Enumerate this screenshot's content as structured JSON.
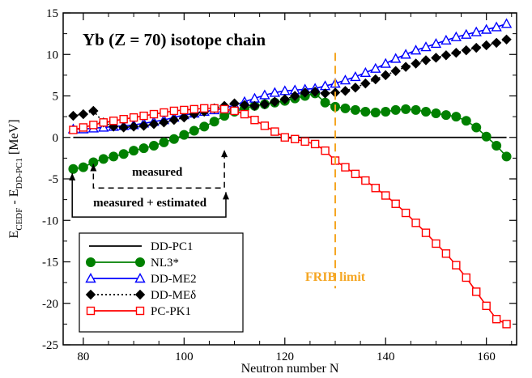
{
  "chart_data": {
    "type": "line",
    "title": "Yb (Z = 70) isotope chain",
    "xlabel": "Neutron number N",
    "ylabel": "E_CEDF - E_DD-PC1 [MeV]",
    "ylabel_parts": {
      "e1": "E",
      "s1": "CEDF",
      "sep": " - ",
      "e2": "E",
      "s2": "DD-PC1",
      "unit": " [MeV]"
    },
    "xlim": [
      76,
      166
    ],
    "ylim": [
      -25,
      15
    ],
    "xticks": [
      80,
      100,
      120,
      140,
      160
    ],
    "yticks": [
      -25,
      -20,
      -15,
      -10,
      -5,
      0,
      5,
      10,
      15
    ],
    "grid": false,
    "legend_position": "bottom-left",
    "annotations": {
      "frib": "FRIB limit",
      "measured": "measured",
      "measured_estimated": "measured + estimated"
    },
    "series": [
      {
        "name": "DD-PC1",
        "key": "ddpc1",
        "color": "#000000",
        "marker": "none",
        "dash": "solid",
        "x": [
          78,
          164
        ],
        "y": [
          0,
          0
        ]
      },
      {
        "name": "NL3*",
        "key": "nl3",
        "color": "#008000",
        "marker": "filled-circle",
        "dash": "solid",
        "x": [
          78,
          80,
          82,
          84,
          86,
          88,
          90,
          92,
          94,
          96,
          98,
          100,
          102,
          104,
          106,
          108,
          110,
          112,
          114,
          116,
          118,
          120,
          122,
          124,
          126,
          128,
          130,
          132,
          134,
          136,
          138,
          140,
          142,
          144,
          146,
          148,
          150,
          152,
          154,
          156,
          158,
          160,
          162,
          164
        ],
        "y": [
          -3.8,
          -3.6,
          -3.0,
          -2.6,
          -2.3,
          -2.0,
          -1.6,
          -1.3,
          -1.0,
          -0.6,
          -0.2,
          0.3,
          0.8,
          1.3,
          1.9,
          2.6,
          3.1,
          3.5,
          3.8,
          4.0,
          4.2,
          4.4,
          4.7,
          5.0,
          5.3,
          4.2,
          3.7,
          3.5,
          3.3,
          3.1,
          3.0,
          3.1,
          3.3,
          3.4,
          3.3,
          3.1,
          2.9,
          2.7,
          2.5,
          2.0,
          1.2,
          0.1,
          -1.0,
          -2.3
        ]
      },
      {
        "name": "DD-ME2",
        "key": "ddme2",
        "color": "#0000ff",
        "marker": "open-triangle",
        "dash": "solid",
        "x": [
          78,
          80,
          82,
          84,
          86,
          88,
          90,
          92,
          94,
          96,
          98,
          100,
          102,
          104,
          106,
          108,
          110,
          112,
          114,
          116,
          118,
          120,
          122,
          124,
          126,
          128,
          130,
          132,
          134,
          136,
          138,
          140,
          142,
          144,
          146,
          148,
          150,
          152,
          154,
          156,
          158,
          160,
          162,
          164
        ],
        "y": [
          1.0,
          1.0,
          1.1,
          1.2,
          1.3,
          1.4,
          1.5,
          1.7,
          1.9,
          2.1,
          2.4,
          2.7,
          2.9,
          3.1,
          3.3,
          3.5,
          3.9,
          4.3,
          4.7,
          5.1,
          5.4,
          5.6,
          5.7,
          5.8,
          5.9,
          6.2,
          6.5,
          6.9,
          7.3,
          7.8,
          8.3,
          8.9,
          9.5,
          10.0,
          10.5,
          10.9,
          11.3,
          11.7,
          12.1,
          12.4,
          12.7,
          13.0,
          13.3,
          13.7
        ]
      },
      {
        "name": "DD-MEδ",
        "key": "ddmed",
        "color": "#000000",
        "marker": "filled-diamond",
        "dash": "dotted",
        "x": [
          78,
          80,
          82,
          84,
          86,
          88,
          90,
          92,
          94,
          96,
          98,
          100,
          102,
          104,
          106,
          108,
          110,
          112,
          114,
          116,
          118,
          120,
          122,
          124,
          126,
          128,
          130,
          132,
          134,
          136,
          138,
          140,
          142,
          144,
          146,
          148,
          150,
          152,
          154,
          156,
          158,
          160,
          162,
          164
        ],
        "y": [
          2.6,
          2.8,
          3.2,
          1.8,
          1.3,
          1.2,
          1.3,
          1.4,
          1.6,
          1.8,
          2.1,
          2.4,
          2.8,
          3.1,
          3.5,
          3.8,
          4.1,
          3.9,
          3.8,
          4.0,
          4.3,
          4.6,
          5.0,
          5.4,
          5.5,
          5.3,
          5.4,
          5.6,
          6.0,
          6.5,
          7.0,
          7.5,
          8.0,
          8.5,
          8.9,
          9.3,
          9.6,
          9.9,
          10.2,
          10.5,
          10.8,
          11.1,
          11.4,
          11.8
        ]
      },
      {
        "name": "PC-PK1",
        "key": "pcpk1",
        "color": "#ff0000",
        "marker": "open-square",
        "dash": "solid",
        "x": [
          78,
          80,
          82,
          84,
          86,
          88,
          90,
          92,
          94,
          96,
          98,
          100,
          102,
          104,
          106,
          108,
          110,
          112,
          114,
          116,
          118,
          120,
          122,
          124,
          126,
          128,
          130,
          132,
          134,
          136,
          138,
          140,
          142,
          144,
          146,
          148,
          150,
          152,
          154,
          156,
          158,
          160,
          162,
          164
        ],
        "y": [
          0.9,
          1.2,
          1.5,
          1.8,
          2.0,
          2.2,
          2.4,
          2.6,
          2.8,
          3.0,
          3.2,
          3.3,
          3.4,
          3.5,
          3.5,
          3.4,
          3.2,
          2.8,
          2.1,
          1.4,
          0.7,
          -0.0,
          -0.2,
          -0.5,
          -0.8,
          -1.6,
          -2.8,
          -3.6,
          -4.4,
          -5.2,
          -6.1,
          -7.0,
          -8.0,
          -9.1,
          -10.3,
          -11.5,
          -12.8,
          -14.0,
          -15.4,
          -16.9,
          -18.6,
          -20.3,
          -21.9,
          -22.5
        ]
      }
    ]
  }
}
